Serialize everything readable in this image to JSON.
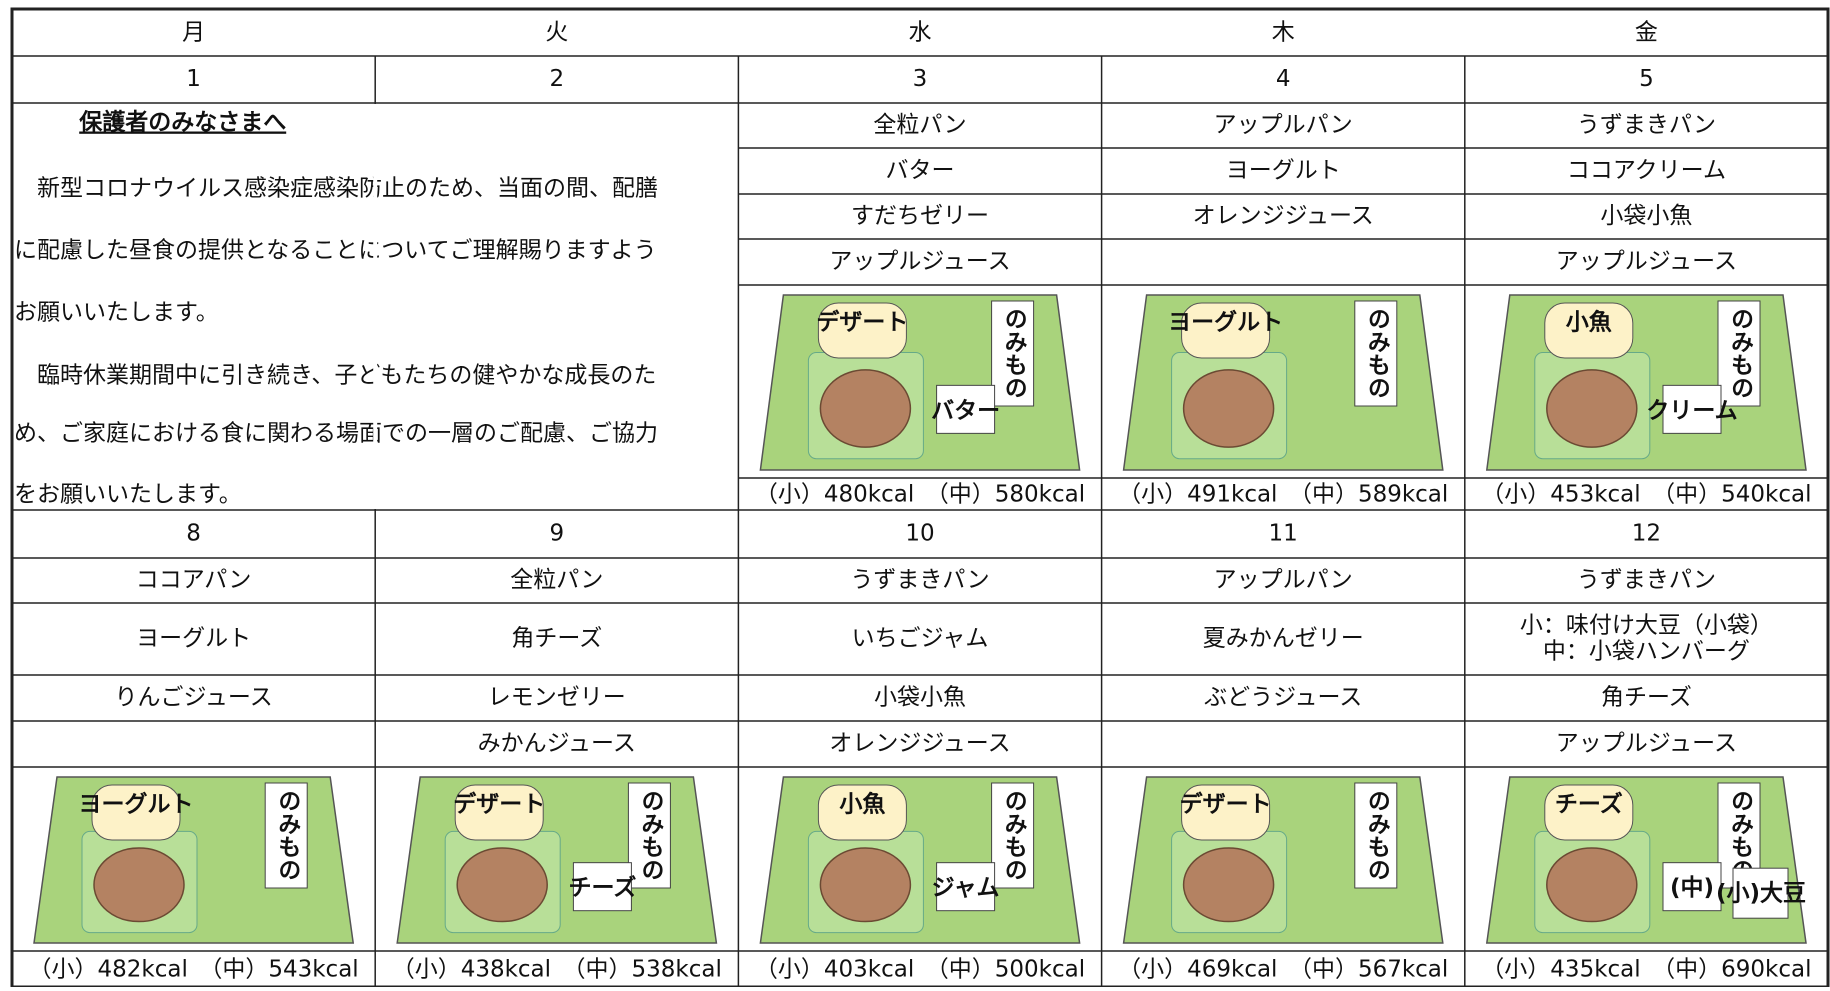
{
  "header": {
    "days": [
      "月",
      "火",
      "水",
      "木",
      "金"
    ]
  },
  "notice": {
    "title": "保護者のみなさまへ",
    "lines": [
      "　新型コロナウイルス感染症感染防止のため、当面の間、配膳",
      "に配慮した昼食の提供となることについてご理解賜りますよう",
      "お願いいたします。",
      "　臨時休業期間中に引き続き、子どもたちの健やかな成長のた",
      "め、ご家庭における食に関わる場面での一層のご配慮、ご協力",
      "をお願いいたします。"
    ]
  },
  "weeks": [
    {
      "dates": [
        "1",
        "2",
        "3",
        "4",
        "5"
      ],
      "menus": [
        null,
        null,
        {
          "items": [
            "全粒パン",
            "バター",
            "すだちゼリー",
            "アップルジュース"
          ],
          "tray": [
            "デザート",
            "のみもの",
            "バター"
          ],
          "kcal": "（小）480kcal　（中）580kcal"
        },
        {
          "items": [
            "アップルパン",
            "ヨーグルト",
            "オレンジジュース"
          ],
          "tray": [
            "ヨーグルト",
            "のみもの"
          ],
          "kcal": "（小）491kcal　（中）589kcal"
        },
        {
          "items": [
            "うずまきパン",
            "ココアクリーム",
            "小袋小魚",
            "アップルジュース"
          ],
          "tray": [
            "小魚",
            "のみもの",
            "クリーム"
          ],
          "kcal": "（小）453kcal　（中）540kcal"
        }
      ]
    },
    {
      "dates": [
        "8",
        "9",
        "10",
        "11",
        "12"
      ],
      "menus": [
        {
          "items": [
            "ココアパン",
            "ヨーグルト",
            "りんごジュース"
          ],
          "tray": [
            "ヨーグルト",
            "のみもの"
          ],
          "kcal": "（小）482kcal　（中）543kcal"
        },
        {
          "items": [
            "全粒パン",
            "角チーズ",
            "レモンゼリー",
            "みかんジュース"
          ],
          "tray": [
            "デザート",
            "のみもの",
            "チーズ"
          ],
          "kcal": "（小）438kcal　（中）538kcal"
        },
        {
          "items": [
            "うずまきパン",
            "いちごジャム",
            "小袋小魚",
            "オレンジジュース"
          ],
          "tray": [
            "小魚",
            "のみもの",
            "ジャム"
          ],
          "kcal": "（小）403kcal　（中）500kcal"
        },
        {
          "items": [
            "アップルパン",
            "夏みかんゼリー",
            "ぶどうジュース"
          ],
          "tray": [
            "デザート",
            "のみもの"
          ],
          "kcal": "（小）469kcal　（中）567kcal"
        },
        {
          "items": [
            "うずまきパン",
            [
              "小：味付け大豆（小袋）",
              "中：小袋ハンバーグ"
            ],
            "角チーズ",
            "アップルジュース"
          ],
          "tray": [
            "チーズ",
            "のみもの",
            "(中)",
            "(小)大豆"
          ],
          "kcal": "（小）435kcal　（中）690kcal"
        }
      ]
    }
  ]
}
